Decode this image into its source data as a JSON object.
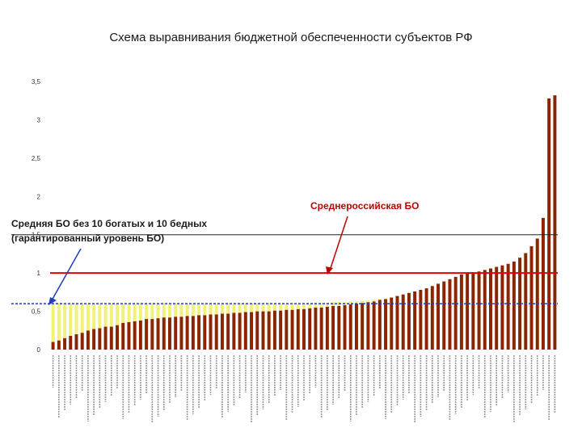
{
  "page": {
    "title": "Схема выравнивания бюджетной обеспеченности субъектов РФ"
  },
  "annotations": {
    "avg_label": "Среднероссийская БО",
    "guaranteed_label_line1": "Средняя БО без 10 богатых и 10 бедных",
    "guaranteed_label_line2": "(гарантированный уровень БО)"
  },
  "colors": {
    "bar_brown": "#8b2500",
    "bar_yellow": "#f2f27a",
    "red_line": "#e00000",
    "black_line": "#222222",
    "arrow_blue": "#1f3fbf",
    "label_red": "#c00000"
  },
  "chart_data": {
    "type": "bar",
    "stacked": true,
    "ylim": [
      0,
      3.5
    ],
    "yticks": [
      "0",
      "0,5",
      "1",
      "1,5",
      "2",
      "2,5",
      "3",
      "3,5"
    ],
    "ytick_values": [
      0,
      0.5,
      1,
      1.5,
      2,
      2.5,
      3,
      3.5
    ],
    "reference_lines": [
      {
        "value": 1.0,
        "label": "Среднероссийская БО"
      },
      {
        "value": 1.5,
        "label": "Средняя БО без 10 богатых и 10 бедных (гарантированный уровень БО)"
      },
      {
        "value": 0.6
      }
    ],
    "series": [
      {
        "values": [
          0.1,
          0.12,
          0.15,
          0.18,
          0.2,
          0.22,
          0.25,
          0.27,
          0.28,
          0.3,
          0.3,
          0.32,
          0.35,
          0.36,
          0.37,
          0.38,
          0.4,
          0.4,
          0.41,
          0.42,
          0.42,
          0.43,
          0.43,
          0.44,
          0.44,
          0.45,
          0.45,
          0.46,
          0.46,
          0.47,
          0.47,
          0.48,
          0.48,
          0.49,
          0.49,
          0.5,
          0.5,
          0.5,
          0.51,
          0.51,
          0.52,
          0.52,
          0.53,
          0.53,
          0.54,
          0.55,
          0.55,
          0.56,
          0.57,
          0.57,
          0.58,
          0.59,
          0.6,
          0.61,
          0.62,
          0.63,
          0.65,
          0.66,
          0.68,
          0.7,
          0.72,
          0.74,
          0.76,
          0.78,
          0.8,
          0.83,
          0.86,
          0.89,
          0.92,
          0.95,
          0.98,
          1.0,
          1.01,
          1.02,
          1.04,
          1.06,
          1.08,
          1.1,
          1.12,
          1.15,
          1.2,
          1.26,
          1.35,
          1.45,
          1.72,
          3.28,
          3.32
        ]
      },
      {
        "values": [
          0.5,
          0.48,
          0.45,
          0.42,
          0.4,
          0.38,
          0.35,
          0.33,
          0.32,
          0.3,
          0.3,
          0.28,
          0.25,
          0.24,
          0.23,
          0.22,
          0.2,
          0.2,
          0.19,
          0.18,
          0.18,
          0.17,
          0.17,
          0.16,
          0.16,
          0.15,
          0.15,
          0.14,
          0.14,
          0.13,
          0.13,
          0.12,
          0.12,
          0.11,
          0.11,
          0.1,
          0.1,
          0.1,
          0.09,
          0.09,
          0.08,
          0.08,
          0.07,
          0.07,
          0.06,
          0.06,
          0.06,
          0.05,
          0.05,
          0.05,
          0.04,
          0.04,
          0.03,
          0.03,
          0.02,
          0.02,
          0.01,
          0.01,
          0,
          0,
          0,
          0,
          0,
          0,
          0,
          0,
          0,
          0,
          0,
          0,
          0,
          0,
          0,
          0,
          0,
          0,
          0,
          0,
          0,
          0,
          0,
          0,
          0,
          0,
          0,
          0,
          0
        ]
      }
    ]
  }
}
